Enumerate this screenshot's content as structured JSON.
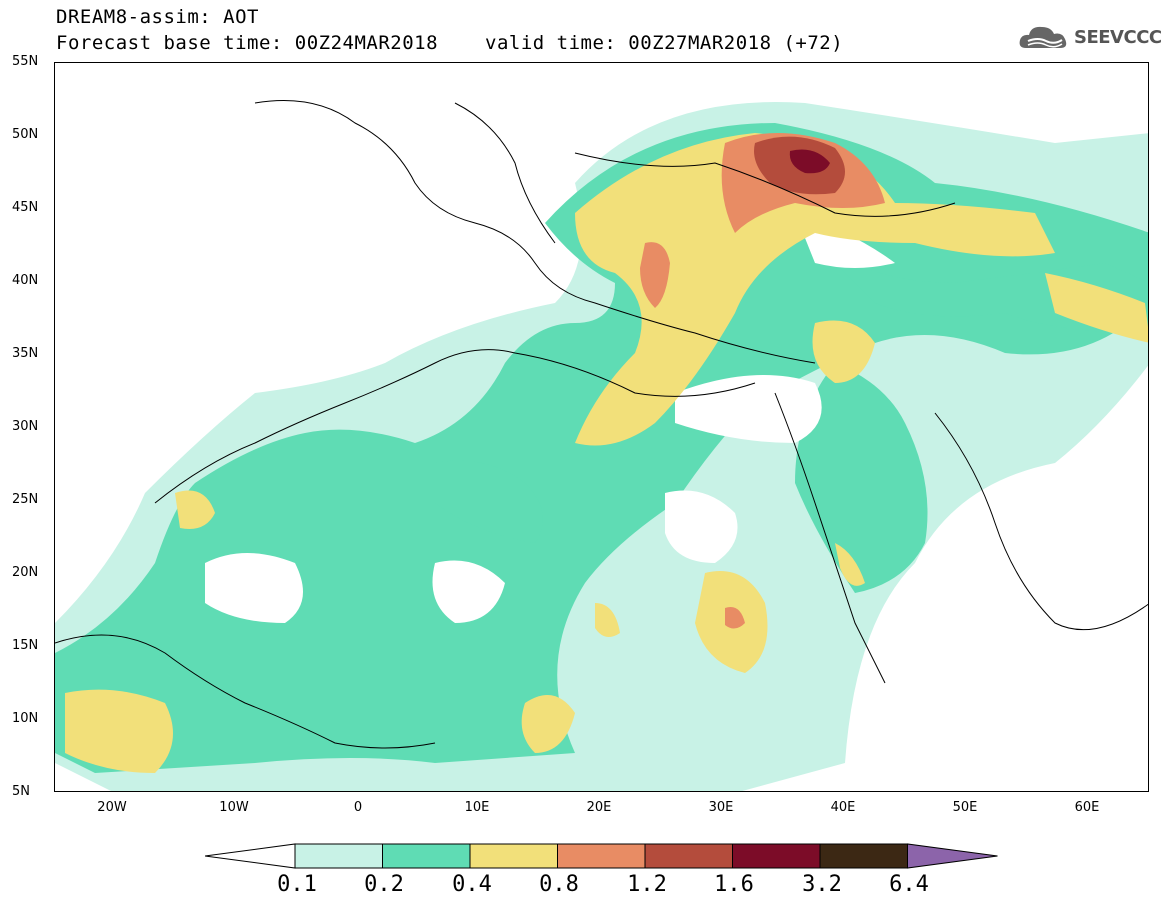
{
  "header": {
    "title_line1": "DREAM8-assim: AOT",
    "title_line2": "Forecast base time: 00Z24MAR2018",
    "valid_time": "valid time: 00Z27MAR2018 (+72)",
    "logo_text": "SEEVCCC",
    "logo_icon": "cloud-icon"
  },
  "map": {
    "lat_labels": [
      "55N",
      "50N",
      "45N",
      "40N",
      "35N",
      "30N",
      "25N",
      "20N",
      "15N",
      "10N",
      "5N"
    ],
    "lon_labels": [
      "20W",
      "10W",
      "0",
      "10E",
      "20E",
      "30E",
      "40E",
      "50E",
      "60E"
    ],
    "lon_range": [
      -25,
      65
    ],
    "lat_range": [
      5,
      55
    ]
  },
  "colorbar": {
    "colors": [
      "#ffffff",
      "#c8f2e6",
      "#5fdcb4",
      "#f2e07a",
      "#e88c64",
      "#b44c3c",
      "#7c0c28",
      "#3c2814",
      "#8c64aa"
    ],
    "labels": [
      "0.1",
      "0.2",
      "0.4",
      "0.8",
      "1.2",
      "1.6",
      "3.2",
      "6.4"
    ]
  }
}
